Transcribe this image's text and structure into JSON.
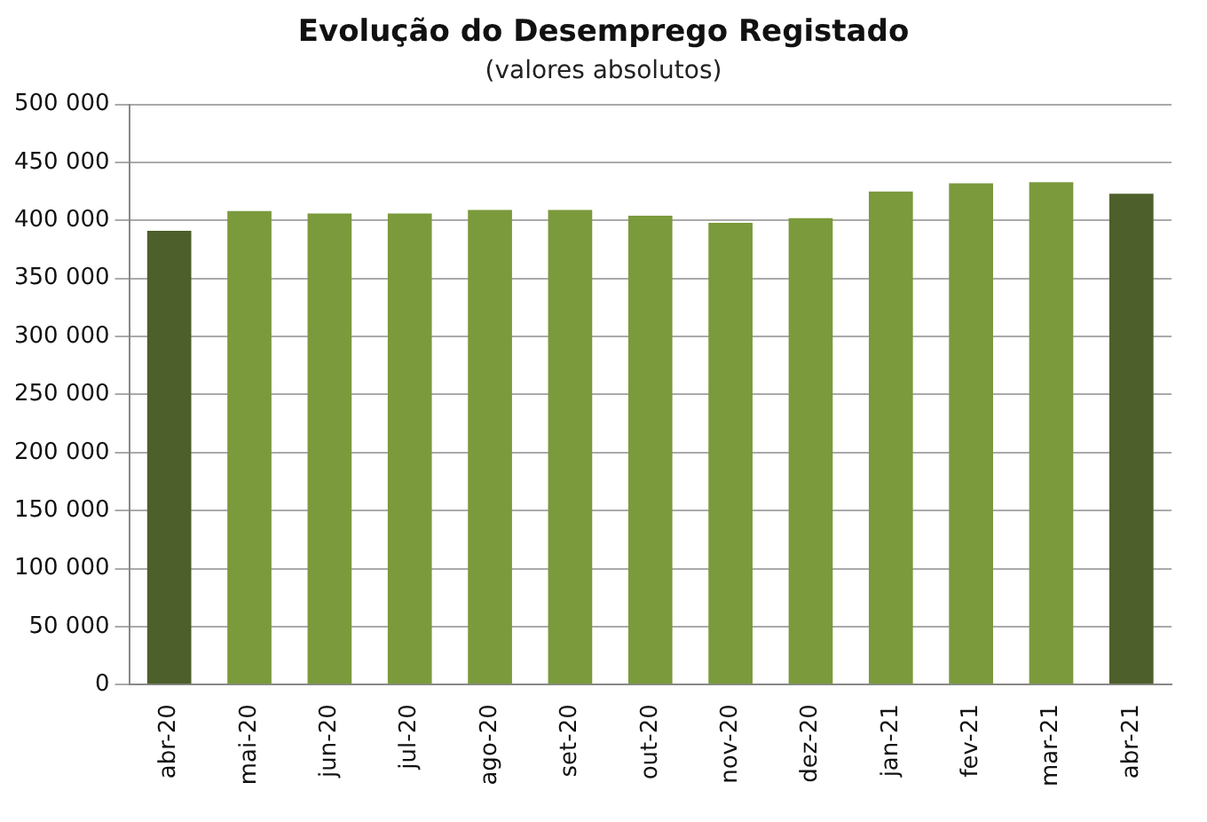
{
  "chart_data": {
    "type": "bar",
    "title": "Evolução do Desemprego Registado",
    "subtitle": "(valores absolutos)",
    "categories": [
      "abr-20",
      "mai-20",
      "jun-20",
      "jul-20",
      "ago-20",
      "set-20",
      "out-20",
      "nov-20",
      "dez-20",
      "jan-21",
      "fev-21",
      "mar-21",
      "abr-21"
    ],
    "values": [
      391000,
      408000,
      406000,
      406000,
      409000,
      409000,
      404000,
      398000,
      402000,
      425000,
      432000,
      433000,
      423000
    ],
    "colors": [
      "#4d5f2a",
      "#7a9a3c",
      "#7a9a3c",
      "#7a9a3c",
      "#7a9a3c",
      "#7a9a3c",
      "#7a9a3c",
      "#7a9a3c",
      "#7a9a3c",
      "#7a9a3c",
      "#7a9a3c",
      "#7a9a3c",
      "#4d5f2a"
    ],
    "ylim": [
      0,
      500000
    ],
    "yticks": [
      {
        "value": 0,
        "label": "0"
      },
      {
        "value": 50000,
        "label": "50 000"
      },
      {
        "value": 100000,
        "label": "100 000"
      },
      {
        "value": 150000,
        "label": "150 000"
      },
      {
        "value": 200000,
        "label": "200 000"
      },
      {
        "value": 250000,
        "label": "250 000"
      },
      {
        "value": 300000,
        "label": "300 000"
      },
      {
        "value": 350000,
        "label": "350 000"
      },
      {
        "value": 400000,
        "label": "400 000"
      },
      {
        "value": 450000,
        "label": "450 000"
      },
      {
        "value": 500000,
        "label": "500 000"
      }
    ],
    "grid": "y",
    "legend": false
  }
}
